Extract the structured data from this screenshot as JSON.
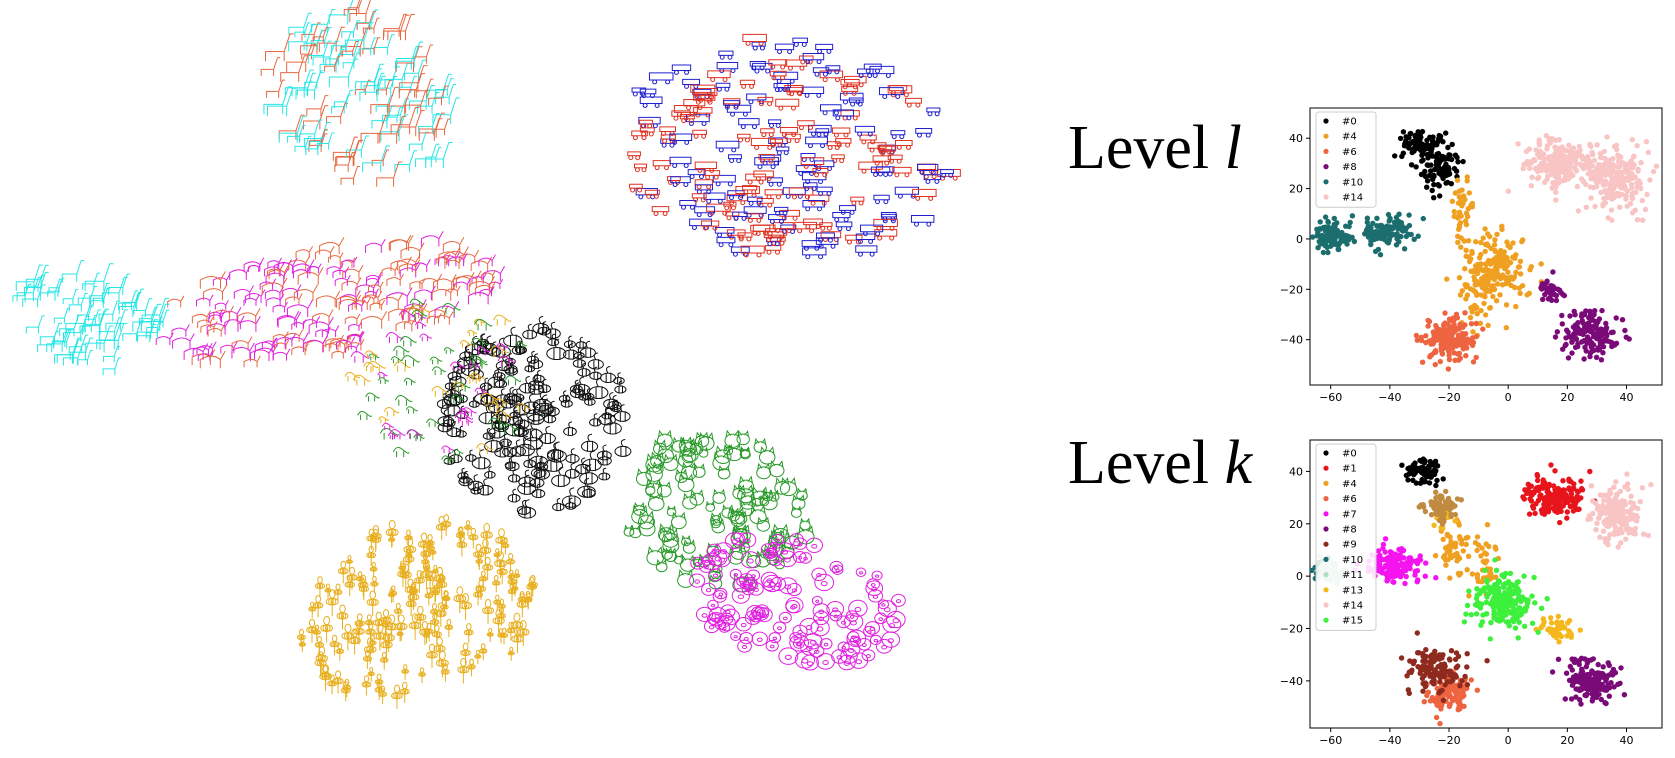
{
  "figure": {
    "panels": [
      {
        "label": "Level",
        "var": "l"
      },
      {
        "label": "Level",
        "var": "k"
      }
    ]
  },
  "colors": {
    "#0": "#000000",
    "#1": "#e8141c",
    "#4": "#f0a020",
    "#6": "#ee6440",
    "#7": "#f514f0",
    "#8": "#7a0a78",
    "#9": "#8e2a1e",
    "#10": "#1c6e6e",
    "#11": "#b0dcc4",
    "#13": "#f5b81c",
    "#14": "#f8c4c4",
    "#15": "#3cf03c",
    "blue": "#2020d0",
    "red": "#e03020",
    "cyan": "#28e6e6",
    "salmon": "#e86840",
    "magenta": "#e020e0",
    "green": "#2a9a2a",
    "black": "#111111",
    "gold": "#e8b020",
    "brown": "#c08a40"
  },
  "sketch_map": {
    "clusters": [
      {
        "name": "cars-buses",
        "colors": [
          "blue",
          "red"
        ]
      },
      {
        "name": "giraffes-top",
        "colors": [
          "cyan",
          "salmon"
        ]
      },
      {
        "name": "horses",
        "colors": [
          "salmon",
          "magenta"
        ]
      },
      {
        "name": "giraffes-left",
        "colors": [
          "cyan"
        ]
      },
      {
        "name": "bees",
        "colors": [
          "black"
        ]
      },
      {
        "name": "cats",
        "colors": [
          "green"
        ]
      },
      {
        "name": "pigs",
        "colors": [
          "magenta"
        ]
      },
      {
        "name": "flowers",
        "colors": [
          "gold"
        ]
      },
      {
        "name": "mixed",
        "colors": [
          "magenta",
          "green",
          "gold"
        ]
      }
    ]
  },
  "chart_data": [
    {
      "type": "scatter",
      "title": "Level l",
      "xlim": [
        -67,
        52
      ],
      "ylim": [
        -58,
        52
      ],
      "xticks": [
        -60,
        -40,
        -20,
        0,
        20,
        40
      ],
      "yticks": [
        40,
        20,
        0,
        -20,
        -40
      ],
      "legend_position": "top-left",
      "legend": [
        "#0",
        "#4",
        "#6",
        "#8",
        "#10",
        "#14"
      ],
      "series": [
        {
          "name": "#0",
          "color": "#000000",
          "clusters": [
            [
              -29,
              37,
              5,
              4,
              90
            ],
            [
              -23,
              27,
              4,
              5,
              70
            ]
          ]
        },
        {
          "name": "#4",
          "color": "#f0a020",
          "clusters": [
            [
              -5,
              -12,
              7,
              9,
              190
            ],
            [
              -15,
              12,
              3,
              10,
              40
            ],
            [
              -10,
              -28,
              4,
              7,
              25
            ]
          ]
        },
        {
          "name": "#6",
          "color": "#ee6440",
          "clusters": [
            [
              -20,
              -40,
              6,
              6,
              170
            ]
          ]
        },
        {
          "name": "#8",
          "color": "#7a0a78",
          "clusters": [
            [
              28,
              -38,
              7,
              6,
              150
            ],
            [
              15,
              -20,
              3,
              3,
              35
            ]
          ]
        },
        {
          "name": "#10",
          "color": "#1c6e6e",
          "clusters": [
            [
              -59,
              1,
              5,
              4,
              90
            ],
            [
              -41,
              3,
              6,
              5,
              100
            ]
          ]
        },
        {
          "name": "#14",
          "color": "#f8c4c4",
          "clusters": [
            [
              17,
              30,
              8,
              6,
              230
            ],
            [
              36,
              24,
              7,
              8,
              200
            ]
          ]
        }
      ]
    },
    {
      "type": "scatter",
      "title": "Level k",
      "xlim": [
        -67,
        52
      ],
      "ylim": [
        -58,
        52
      ],
      "xticks": [
        -60,
        -40,
        -20,
        0,
        20,
        40
      ],
      "yticks": [
        40,
        20,
        0,
        -20,
        -40
      ],
      "legend_position": "top-left",
      "legend": [
        "#0",
        "#1",
        "#4",
        "#6",
        "#7",
        "#8",
        "#9",
        "#10",
        "#11",
        "#13",
        "#14",
        "#15"
      ],
      "series": [
        {
          "name": "#0",
          "color": "#000000",
          "clusters": [
            [
              -29,
              40,
              4,
              3,
              80
            ]
          ]
        },
        {
          "name": "#1",
          "color": "#e8141c",
          "clusters": [
            [
              16,
              30,
              7,
              5,
              170
            ]
          ]
        },
        {
          "name": "#4",
          "color": "#f0a020",
          "clusters": [
            [
              -18,
              10,
              3,
              6,
              50
            ],
            [
              -8,
              5,
              3,
              8,
              40
            ]
          ]
        },
        {
          "name": "#6",
          "color": "#ee6440",
          "clusters": [
            [
              -20,
              -44,
              5,
              5,
              120
            ]
          ]
        },
        {
          "name": "#7",
          "color": "#f514f0",
          "clusters": [
            [
              -38,
              4,
              7,
              4,
              150
            ]
          ]
        },
        {
          "name": "#8",
          "color": "#7a0a78",
          "clusters": [
            [
              28,
              -40,
              6,
              5,
              150
            ]
          ]
        },
        {
          "name": "#9",
          "color": "#8e2a1e",
          "clusters": [
            [
              -24,
              -36,
              6,
              6,
              120
            ]
          ]
        },
        {
          "name": "#10",
          "color": "#1c6e6e",
          "clusters": [
            [
              -62,
              2,
              3,
              3,
              20
            ]
          ]
        },
        {
          "name": "#11",
          "color": "#b0dcc4",
          "clusters": [
            [
              -60,
              2,
              4,
              3,
              50
            ]
          ]
        },
        {
          "name": "#13",
          "color": "#f5b81c",
          "clusters": [
            [
              16,
              -20,
              4,
              3,
              45
            ],
            [
              -22,
              23,
              3,
              3,
              15
            ]
          ]
        },
        {
          "name": "#14",
          "color": "#f8c4c4",
          "clusters": [
            [
              37,
              24,
              6,
              7,
              180
            ]
          ]
        },
        {
          "name": "#15",
          "color": "#3cf03c",
          "clusters": [
            [
              -2,
              -9,
              7,
              7,
              200
            ]
          ]
        }
      ],
      "extra_series": [
        {
          "name": "brown",
          "color": "#c08a40",
          "clusters": [
            [
              -23,
              26,
              4,
              4,
              70
            ]
          ]
        }
      ]
    }
  ]
}
